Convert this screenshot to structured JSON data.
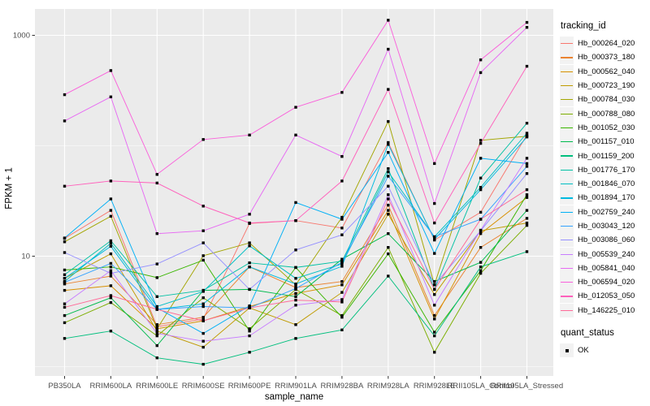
{
  "figure": {
    "background": "#FFFFFF",
    "panel_background": "#EBEBEB",
    "grid_color": "#FFFFFF",
    "tick_label_color": "#4D4D4D",
    "tick_mark_color": "#333333",
    "marker_color": "#000000"
  },
  "axes": {
    "x_title": "sample_name",
    "y_title": "FPKM + 1"
  },
  "legend": {
    "tracking_title": "tracking_id",
    "quant_title": "quant_status",
    "quant_ok_label": "OK"
  },
  "chart_data": {
    "type": "line",
    "title": "",
    "xlabel": "sample_name",
    "ylabel": "FPKM + 1",
    "legend_position": "right",
    "grid": true,
    "y_axis": {
      "scale": "log10",
      "tick_labels": [
        "1000",
        "10"
      ],
      "tick_values": [
        1000,
        10
      ],
      "minor_gridline_values": [
        100,
        1
      ],
      "range": [
        1,
        1400
      ]
    },
    "point_marker": {
      "shape": "square",
      "color": "#000000",
      "meaning": "quant_status OK"
    },
    "x_categories": [
      "PB350LA",
      "RRIM600LA",
      "RRIM600LE",
      "RRIM600SE",
      "RRIM600PE",
      "RRIM901LA",
      "RRIM928BA",
      "RRIM928LA",
      "RRIM928LE",
      "RRII105LA_Control",
      "RRII105LA_Stressed"
    ],
    "series": [
      {
        "name": "Hb_000264_020",
        "color": "#F8766D",
        "values": [
          14.5,
          26,
          2.3,
          2.7,
          19.8,
          21,
          18,
          107,
          14,
          25,
          125
        ]
      },
      {
        "name": "Hb_000373_180",
        "color": "#EA8331",
        "values": [
          5.6,
          6.6,
          2.4,
          2.8,
          8.0,
          5.2,
          5.9,
          29,
          2.9,
          12,
          22
        ]
      },
      {
        "name": "Hb_000562_040",
        "color": "#D89000",
        "values": [
          4.9,
          5.4,
          2.2,
          2.6,
          3.5,
          4.6,
          5.5,
          26,
          2.7,
          16,
          34
        ]
      },
      {
        "name": "Hb_000723_190",
        "color": "#C09B00",
        "values": [
          6.3,
          10.5,
          2.1,
          1.5,
          3.4,
          2.4,
          4.7,
          24,
          4.5,
          17,
          20
        ]
      },
      {
        "name": "Hb_000784_030",
        "color": "#A3A500",
        "values": [
          13.5,
          23,
          2.2,
          10.1,
          13.2,
          5.5,
          22.5,
          166,
          5.5,
          112,
          122
        ]
      },
      {
        "name": "Hb_000788_080",
        "color": "#7CAE00",
        "values": [
          2.5,
          3.8,
          1.9,
          4.2,
          2.2,
          5.0,
          2.9,
          12,
          1.35,
          7.0,
          19
        ]
      },
      {
        "name": "Hb_001052_030",
        "color": "#39B600",
        "values": [
          7.5,
          8.0,
          6.4,
          9.2,
          2.1,
          7.9,
          2.8,
          10.5,
          2.05,
          7.4,
          36
        ]
      },
      {
        "name": "Hb_001157_010",
        "color": "#00BB4E",
        "values": [
          2.9,
          4.2,
          1.55,
          4.9,
          5.0,
          4.3,
          9.4,
          16,
          5.9,
          8.8,
          26
        ]
      },
      {
        "name": "Hb_001159_200",
        "color": "#00BF7D",
        "values": [
          1.8,
          2.1,
          1.2,
          1.05,
          1.35,
          1.8,
          2.15,
          6.6,
          1.9,
          8.0,
          11
        ]
      },
      {
        "name": "Hb_001776_170",
        "color": "#00C1A3",
        "values": [
          6.8,
          13.8,
          4.3,
          4.9,
          8.7,
          7.9,
          9.0,
          62,
          5.0,
          51,
          160
        ]
      },
      {
        "name": "Hb_001846_070",
        "color": "#00BFC4",
        "values": [
          5.9,
          13.1,
          3.5,
          4.8,
          12.4,
          6.3,
          8.5,
          58,
          15,
          42,
          130
        ]
      },
      {
        "name": "Hb_001894_170",
        "color": "#00BAE0",
        "values": [
          6.3,
          12.3,
          3.3,
          3.7,
          8.0,
          5.6,
          8.1,
          103,
          14.2,
          40,
          120
        ]
      },
      {
        "name": "Hb_002759_240",
        "color": "#00B0F6",
        "values": [
          14.6,
          33,
          3.4,
          2.0,
          3.55,
          30.6,
          21.6,
          87,
          10.6,
          77,
          69
        ]
      },
      {
        "name": "Hb_003043_120",
        "color": "#35A2FF",
        "values": [
          5.8,
          8.6,
          3.3,
          3.5,
          3.4,
          5.1,
          8.8,
          53,
          15,
          21.6,
          65
        ]
      },
      {
        "name": "Hb_003086_060",
        "color": "#9590FF",
        "values": [
          10.8,
          7.0,
          8.5,
          13.2,
          5.0,
          11.4,
          15.6,
          43,
          5.5,
          17,
          56
        ]
      },
      {
        "name": "Hb_005539_240",
        "color": "#C77CFF",
        "values": [
          3.7,
          7.4,
          2.0,
          1.7,
          1.9,
          3.6,
          4.05,
          36,
          3.6,
          17.2,
          77
        ]
      },
      {
        "name": "Hb_005841_040",
        "color": "#E76BF3",
        "values": [
          168,
          277,
          16,
          17,
          24,
          125,
          80,
          749,
          30,
          460,
          1180
        ]
      },
      {
        "name": "Hb_006594_020",
        "color": "#FA62DB",
        "values": [
          290,
          480,
          55,
          114,
          125,
          223,
          304,
          1370,
          69,
          600,
          1310
        ]
      },
      {
        "name": "Hb_012053_050",
        "color": "#FF62BC",
        "values": [
          43,
          48,
          46,
          28.4,
          20,
          21,
          48,
          324,
          20,
          105,
          525
        ]
      },
      {
        "name": "Hb_146225_010",
        "color": "#FF6A98",
        "values": [
          3.45,
          4.4,
          3.3,
          2.6,
          3.4,
          4.0,
          3.85,
          33,
          5.0,
          21.6,
          40
        ]
      }
    ]
  }
}
